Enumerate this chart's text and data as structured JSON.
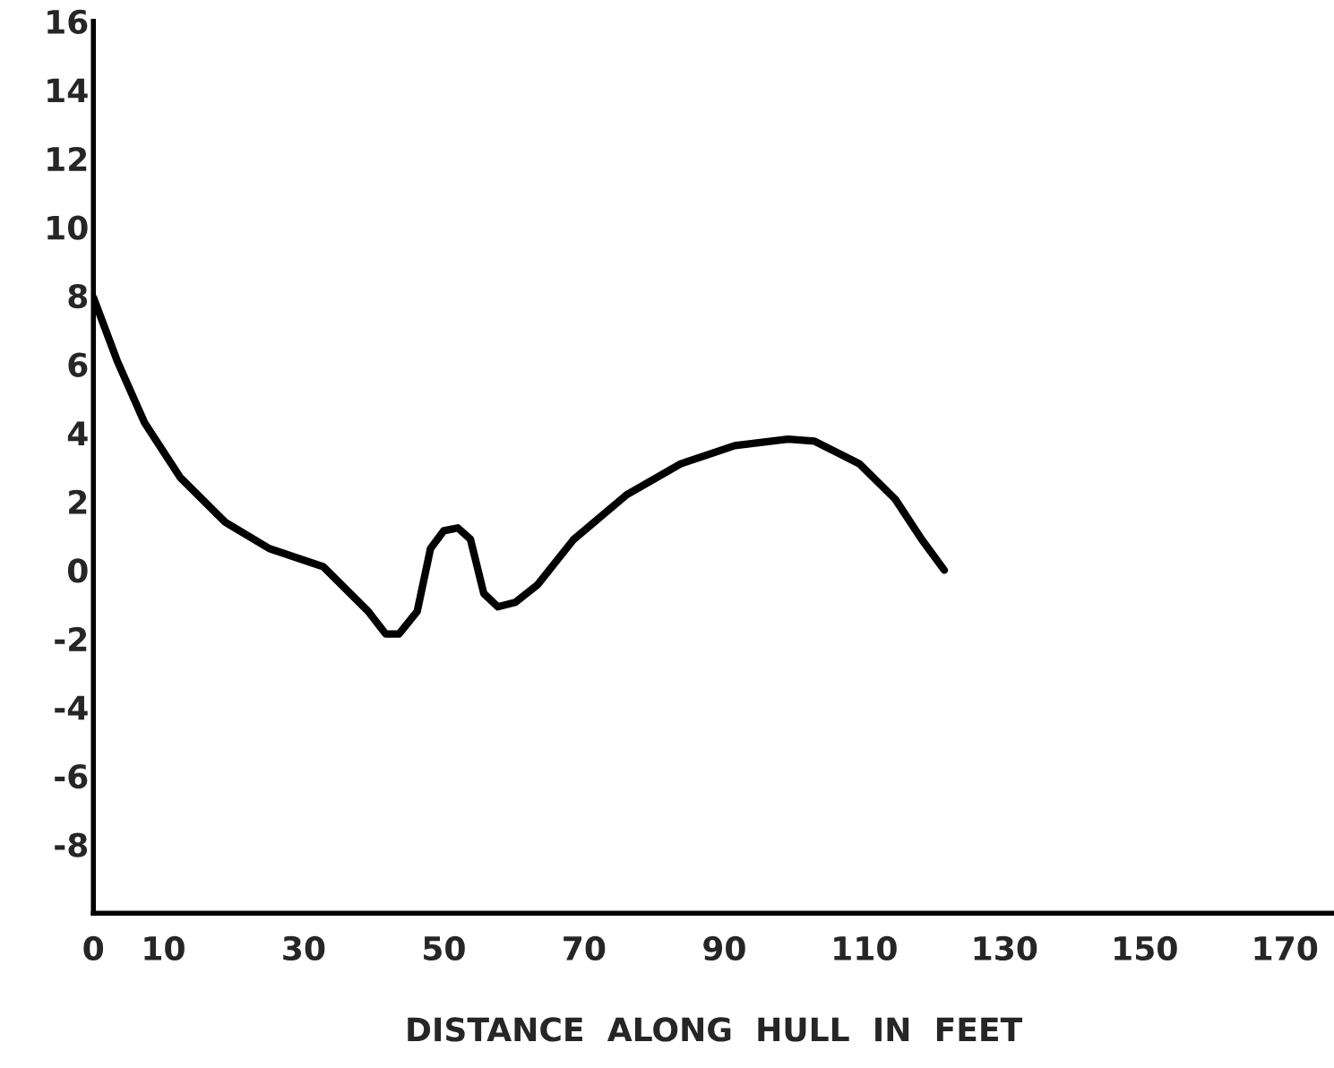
{
  "chart_data": {
    "type": "line",
    "xlabel": "DISTANCE  ALONG  HULL  IN  FEET",
    "x": [
      0,
      3.4,
      7.3,
      12.4,
      18.8,
      25.1,
      32.8,
      39.2,
      41.7,
      43.6,
      46.2,
      48.1,
      50.0,
      52.0,
      53.8,
      55.7,
      57.7,
      60.2,
      63.4,
      68.5,
      76.1,
      83.8,
      91.5,
      99.1,
      102.9,
      109.3,
      114.4,
      118.2,
      121.4
    ],
    "series": [
      {
        "color": "#000000",
        "values": [
          7.95,
          6.1,
          4.3,
          2.7,
          1.4,
          0.63,
          0.1,
          -1.2,
          -1.86,
          -1.86,
          -1.2,
          0.63,
          1.15,
          1.23,
          0.9,
          -0.68,
          -1.07,
          -0.94,
          -0.42,
          0.89,
          2.2,
          3.1,
          3.63,
          3.82,
          3.76,
          3.1,
          2.07,
          0.89,
          0
        ]
      }
    ],
    "xlim": [
      0,
      177
    ],
    "ylim": [
      -10,
      16
    ],
    "xticks": [
      0,
      10,
      30,
      50,
      70,
      90,
      110,
      130,
      150,
      170
    ],
    "yticks": [
      -8,
      -6,
      -4,
      -2,
      0,
      2,
      4,
      6,
      8,
      10,
      12,
      14,
      16
    ],
    "grid": false,
    "legend": false,
    "marker": "none",
    "line_style": "solid"
  }
}
